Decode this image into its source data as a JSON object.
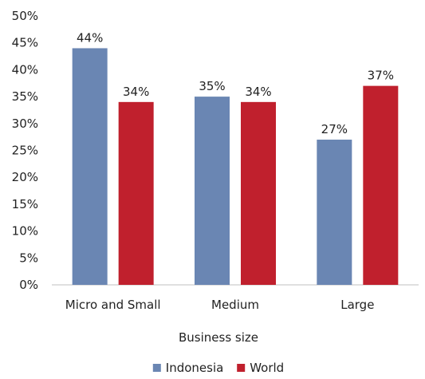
{
  "chart_data": {
    "type": "bar",
    "categories": [
      "Micro and Small",
      "Medium",
      "Large"
    ],
    "series": [
      {
        "name": "Indonesia",
        "values": [
          44,
          35,
          27
        ],
        "color": "#6a86b3"
      },
      {
        "name": "World",
        "values": [
          34,
          34,
          37
        ],
        "color": "#c0202d"
      }
    ],
    "data_labels": {
      "Indonesia": [
        "44%",
        "35%",
        "27%"
      ],
      "World": [
        "34%",
        "34%",
        "37%"
      ]
    },
    "y_ticks": [
      "0%",
      "5%",
      "10%",
      "15%",
      "20%",
      "25%",
      "30%",
      "35%",
      "40%",
      "45%",
      "50%"
    ],
    "ylim": [
      0,
      50
    ],
    "xlabel": "Business size",
    "ylabel": "",
    "grid": false,
    "legend_position": "bottom-center"
  }
}
